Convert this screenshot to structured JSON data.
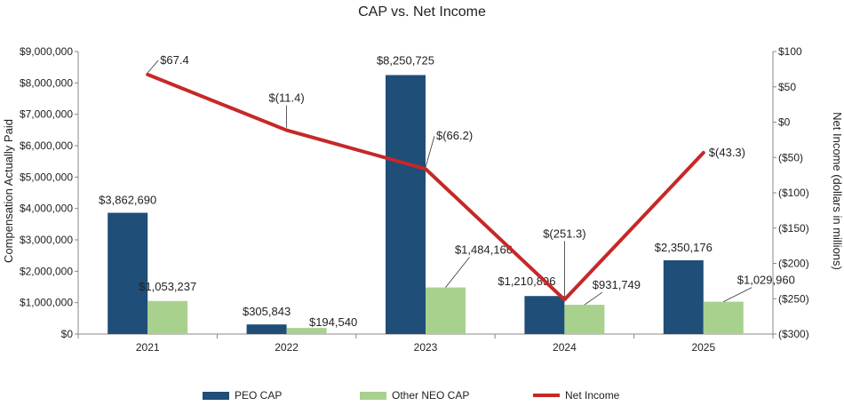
{
  "chart_data": {
    "type": "bar+line",
    "title": "CAP vs. Net Income",
    "categories": [
      "2021",
      "2022",
      "2023",
      "2024",
      "2025"
    ],
    "series": [
      {
        "name": "PEO CAP",
        "type": "bar",
        "axis": "left",
        "color": "#1f4e79",
        "values": [
          3862690,
          305843,
          8250725,
          1210896,
          2350176
        ],
        "labels": [
          "$3,862,690",
          "$305,843",
          "$8,250,725",
          "$1,210,896",
          "$2,350,176"
        ]
      },
      {
        "name": "Other NEO CAP",
        "type": "bar",
        "axis": "left",
        "color": "#a9d18e",
        "values": [
          1053237,
          194540,
          1484166,
          931749,
          1029960
        ],
        "labels": [
          "$1,053,237",
          "$194,540",
          "$1,484,166",
          "$931,749",
          "$1,029,960"
        ]
      },
      {
        "name": "Net Income",
        "type": "line",
        "axis": "right",
        "color": "#c62828",
        "values": [
          67.4,
          -11.4,
          -66.2,
          -251.3,
          -43.3
        ],
        "labels": [
          "$67.4",
          "$(11.4)",
          "$(66.2)",
          "$(251.3)",
          "$(43.3)"
        ]
      }
    ],
    "left_axis": {
      "label": "Compensation Actually Paid",
      "min": 0,
      "max": 9000000,
      "ticks": [
        0,
        1000000,
        2000000,
        3000000,
        4000000,
        5000000,
        6000000,
        7000000,
        8000000,
        9000000
      ],
      "tick_labels": [
        "$0",
        "$1,000,000",
        "$2,000,000",
        "$3,000,000",
        "$4,000,000",
        "$5,000,000",
        "$6,000,000",
        "$7,000,000",
        "$8,000,000",
        "$9,000,000"
      ]
    },
    "right_axis": {
      "label": "Net Income (dollars in millions)",
      "min": -300,
      "max": 100,
      "ticks": [
        100,
        50,
        0,
        -50,
        -100,
        -150,
        -200,
        -250,
        -300
      ],
      "tick_labels": [
        "$100",
        "$50",
        "$0",
        "($50)",
        "($100)",
        "($150)",
        "($200)",
        "($250)",
        "($300)"
      ]
    },
    "legend": {
      "position": "bottom",
      "items": [
        "PEO CAP",
        "Other NEO CAP",
        "Net Income"
      ]
    }
  }
}
